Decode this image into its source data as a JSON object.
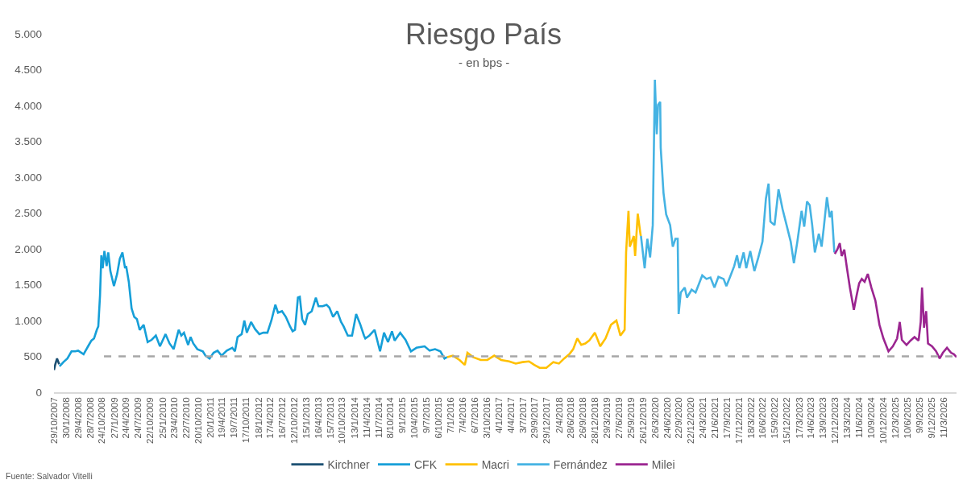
{
  "chart_data": {
    "type": "line",
    "title": "Riesgo País",
    "subtitle": "- en bps -",
    "annotations": [
      "Fuente: Salvador Vitelli"
    ],
    "xlim": [
      "2007-10-29",
      "2026-06-15"
    ],
    "xticks": [
      {
        "value": "2007-10-29",
        "label": "29/10/2007"
      },
      {
        "value": "2008-01-30",
        "label": "30/1/2008"
      },
      {
        "value": "2008-04-29",
        "label": "29/4/2008"
      },
      {
        "value": "2008-07-28",
        "label": "28/7/2008"
      },
      {
        "value": "2008-10-24",
        "label": "24/10/2008"
      },
      {
        "value": "2009-01-27",
        "label": "27/1/2009"
      },
      {
        "value": "2009-04-24",
        "label": "24/4/2009"
      },
      {
        "value": "2009-07-24",
        "label": "24/7/2009"
      },
      {
        "value": "2009-10-22",
        "label": "22/10/2009"
      },
      {
        "value": "2010-01-25",
        "label": "25/1/2010"
      },
      {
        "value": "2010-04-23",
        "label": "23/4/2010"
      },
      {
        "value": "2010-07-22",
        "label": "22/7/2010"
      },
      {
        "value": "2010-10-20",
        "label": "20/10/2010"
      },
      {
        "value": "2011-01-20",
        "label": "20/1/2011"
      },
      {
        "value": "2011-04-19",
        "label": "19/4/2011"
      },
      {
        "value": "2011-07-19",
        "label": "19/7/2011"
      },
      {
        "value": "2011-10-17",
        "label": "17/10/2011"
      },
      {
        "value": "2012-01-18",
        "label": "18/1/2012"
      },
      {
        "value": "2012-04-17",
        "label": "17/4/2012"
      },
      {
        "value": "2012-07-16",
        "label": "16/7/2012"
      },
      {
        "value": "2012-10-12",
        "label": "12/10/2012"
      },
      {
        "value": "2013-01-15",
        "label": "15/1/2013"
      },
      {
        "value": "2013-04-16",
        "label": "16/4/2013"
      },
      {
        "value": "2013-07-15",
        "label": "15/7/2013"
      },
      {
        "value": "2013-10-10",
        "label": "10/10/2013"
      },
      {
        "value": "2014-01-13",
        "label": "13/1/2014"
      },
      {
        "value": "2014-04-11",
        "label": "11/4/2014"
      },
      {
        "value": "2014-07-11",
        "label": "11/7/2014"
      },
      {
        "value": "2014-10-08",
        "label": "8/10/2014"
      },
      {
        "value": "2015-01-09",
        "label": "9/1/2015"
      },
      {
        "value": "2015-04-10",
        "label": "10/4/2015"
      },
      {
        "value": "2015-07-09",
        "label": "9/7/2015"
      },
      {
        "value": "2015-10-06",
        "label": "6/10/2015"
      },
      {
        "value": "2016-01-07",
        "label": "7/1/2016"
      },
      {
        "value": "2016-04-07",
        "label": "7/4/2016"
      },
      {
        "value": "2016-07-06",
        "label": "6/7/2016"
      },
      {
        "value": "2016-10-03",
        "label": "3/10/2016"
      },
      {
        "value": "2017-01-04",
        "label": "4/1/2017"
      },
      {
        "value": "2017-04-04",
        "label": "4/4/2017"
      },
      {
        "value": "2017-07-03",
        "label": "3/7/2017"
      },
      {
        "value": "2017-09-29",
        "label": "29/9/2017"
      },
      {
        "value": "2017-12-29",
        "label": "29/12/2017"
      },
      {
        "value": "2018-04-02",
        "label": "2/4/2018"
      },
      {
        "value": "2018-06-28",
        "label": "28/6/2018"
      },
      {
        "value": "2018-09-26",
        "label": "26/9/2018"
      },
      {
        "value": "2018-12-28",
        "label": "28/12/2018"
      },
      {
        "value": "2019-03-29",
        "label": "29/3/2019"
      },
      {
        "value": "2019-06-27",
        "label": "27/6/2019"
      },
      {
        "value": "2019-09-25",
        "label": "25/9/2019"
      },
      {
        "value": "2019-12-26",
        "label": "26/12/2019"
      },
      {
        "value": "2020-03-26",
        "label": "26/3/2020"
      },
      {
        "value": "2020-06-24",
        "label": "24/6/2020"
      },
      {
        "value": "2020-09-22",
        "label": "22/9/2020"
      },
      {
        "value": "2020-12-22",
        "label": "22/12/2020"
      },
      {
        "value": "2021-03-24",
        "label": "24/3/2021"
      },
      {
        "value": "2021-06-21",
        "label": "21/6/2021"
      },
      {
        "value": "2021-09-17",
        "label": "17/9/2021"
      },
      {
        "value": "2021-12-17",
        "label": "17/12/2021"
      },
      {
        "value": "2022-03-18",
        "label": "18/3/2022"
      },
      {
        "value": "2022-06-16",
        "label": "16/6/2022"
      },
      {
        "value": "2022-09-15",
        "label": "15/9/2022"
      },
      {
        "value": "2022-12-15",
        "label": "15/12/2022"
      },
      {
        "value": "2023-03-17",
        "label": "17/3/2023"
      },
      {
        "value": "2023-06-14",
        "label": "14/6/2023"
      },
      {
        "value": "2023-09-13",
        "label": "13/9/2023"
      },
      {
        "value": "2023-12-12",
        "label": "12/12/2023"
      },
      {
        "value": "2024-03-13",
        "label": "13/3/2024"
      },
      {
        "value": "2024-06-11",
        "label": "11/6/2024"
      },
      {
        "value": "2024-09-10",
        "label": "10/9/2024"
      },
      {
        "value": "2024-12-10",
        "label": "10/12/2024"
      },
      {
        "value": "2025-03-12",
        "label": "12/3/2025"
      },
      {
        "value": "2025-06-10",
        "label": "10/6/2025"
      },
      {
        "value": "2025-09-09",
        "label": "9/9/2025"
      },
      {
        "value": "2025-12-09",
        "label": "9/12/2025"
      },
      {
        "value": "2026-03-11",
        "label": "11/3/2026"
      }
    ],
    "ylim": [
      0,
      5000
    ],
    "yticks": [
      0,
      500,
      {
        "value": 1000,
        "label": "1.000"
      },
      {
        "value": 1500,
        "label": "1.500"
      },
      {
        "value": 2000,
        "label": "2.000"
      },
      {
        "value": 2500,
        "label": "2.500"
      },
      {
        "value": 3000,
        "label": "3.000"
      },
      {
        "value": 3500,
        "label": "3.500"
      },
      {
        "value": 4000,
        "label": "4.000"
      },
      {
        "value": 4500,
        "label": "4.500"
      },
      {
        "value": 5000,
        "label": "5.000"
      }
    ],
    "legend": "bottom",
    "series": [
      {
        "name": "Kirchner",
        "color": "#1b4f72",
        "x": [
          "2007-10-29",
          "2007-11-08",
          "2007-11-21",
          "2007-12-07"
        ],
        "values": [
          310,
          390,
          470,
          390
        ]
      },
      {
        "name": "CFK",
        "color": "#169fd8",
        "x": [
          "2007-12-10",
          "2008-01-08",
          "2008-02-07",
          "2008-03-09",
          "2008-04-07",
          "2008-04-28",
          "2008-06-08",
          "2008-07-18",
          "2008-08-06",
          "2008-08-26",
          "2008-09-16",
          "2008-09-27",
          "2008-10-10",
          "2008-10-20",
          "2008-10-30",
          "2008-11-12",
          "2008-11-29",
          "2008-12-11",
          "2008-12-27",
          "2009-01-23",
          "2009-02-16",
          "2009-03-08",
          "2009-03-28",
          "2009-04-17",
          "2009-04-25",
          "2009-05-15",
          "2009-06-05",
          "2009-06-25",
          "2009-07-15",
          "2009-08-05",
          "2009-09-04",
          "2009-10-04",
          "2009-11-03",
          "2009-12-05",
          "2010-01-05",
          "2010-02-16",
          "2010-03-18",
          "2010-04-18",
          "2010-05-26",
          "2010-06-15",
          "2010-07-05",
          "2010-08-05",
          "2010-08-24",
          "2010-09-13",
          "2010-10-14",
          "2010-11-24",
          "2010-12-14",
          "2011-01-14",
          "2011-02-13",
          "2011-03-15",
          "2011-04-14",
          "2011-05-24",
          "2011-07-04",
          "2011-07-24",
          "2011-08-13",
          "2011-09-13",
          "2011-10-03",
          "2011-10-22",
          "2011-11-23",
          "2011-12-23",
          "2012-01-24",
          "2012-02-23",
          "2012-03-25",
          "2012-04-24",
          "2012-05-24",
          "2012-06-13",
          "2012-07-13",
          "2012-08-11",
          "2012-09-11",
          "2012-10-01",
          "2012-10-19",
          "2012-11-10",
          "2012-11-24",
          "2012-12-12",
          "2013-01-03",
          "2013-01-23",
          "2013-02-22",
          "2013-03-25",
          "2013-04-14",
          "2013-05-15",
          "2013-06-14",
          "2013-07-05",
          "2013-08-02",
          "2013-09-02",
          "2013-10-01",
          "2013-10-20",
          "2013-11-21",
          "2013-12-23",
          "2014-01-23",
          "2014-02-22",
          "2014-03-23",
          "2014-04-02",
          "2014-05-02",
          "2014-06-11",
          "2014-07-22",
          "2014-08-21",
          "2014-09-20",
          "2014-10-20",
          "2014-11-09",
          "2014-12-21",
          "2015-01-30",
          "2015-03-12",
          "2015-04-23",
          "2015-06-23",
          "2015-07-31",
          "2015-09-10",
          "2015-10-20",
          "2015-11-20",
          "2015-12-09"
        ],
        "values": [
          360,
          420,
          470,
          570,
          570,
          580,
          530,
          660,
          720,
          750,
          870,
          920,
          1350,
          1910,
          1730,
          1970,
          1760,
          1950,
          1690,
          1480,
          1650,
          1860,
          1950,
          1730,
          1760,
          1540,
          1170,
          1050,
          1020,
          870,
          940,
          700,
          730,
          790,
          640,
          810,
          680,
          600,
          870,
          790,
          830,
          660,
          770,
          680,
          600,
          570,
          510,
          470,
          550,
          580,
          510,
          580,
          620,
          570,
          770,
          810,
          1000,
          830,
          980,
          880,
          810,
          830,
          830,
          1000,
          1220,
          1110,
          1130,
          1050,
          920,
          850,
          870,
          1320,
          1330,
          1020,
          940,
          1090,
          1130,
          1320,
          1200,
          1200,
          1220,
          1180,
          1050,
          1130,
          980,
          920,
          790,
          790,
          1090,
          950,
          790,
          750,
          790,
          870,
          570,
          830,
          700,
          850,
          720,
          830,
          730,
          570,
          620,
          640,
          580,
          600,
          570,
          470,
          490
        ]
      },
      {
        "name": "Macri",
        "color": "#ffc000",
        "x": [
          "2015-12-10",
          "2016-01-22",
          "2016-03-12",
          "2016-04-21",
          "2016-05-11",
          "2016-06-21",
          "2016-08-19",
          "2016-10-08",
          "2016-11-29",
          "2017-01-20",
          "2017-03-21",
          "2017-05-10",
          "2017-06-30",
          "2017-08-18",
          "2017-09-27",
          "2017-11-06",
          "2017-12-27",
          "2018-02-17",
          "2018-04-01",
          "2018-05-10",
          "2018-06-18",
          "2018-07-17",
          "2018-08-17",
          "2018-09-16",
          "2018-10-16",
          "2018-11-15",
          "2018-12-28",
          "2019-02-06",
          "2019-03-18",
          "2019-04-28",
          "2019-06-08",
          "2019-07-08",
          "2019-08-09",
          "2019-08-20",
          "2019-09-07",
          "2019-09-17",
          "2019-10-17",
          "2019-10-27",
          "2019-11-16",
          "2019-12-06",
          "2019-12-09"
        ],
        "values": [
          490,
          510,
          450,
          380,
          550,
          490,
          450,
          450,
          510,
          450,
          430,
          400,
          420,
          430,
          380,
          340,
          340,
          420,
          400,
          470,
          530,
          600,
          750,
          660,
          680,
          720,
          830,
          640,
          750,
          940,
          1000,
          790,
          870,
          1950,
          2530,
          2030,
          2180,
          1900,
          2490,
          2210,
          2180
        ]
      },
      {
        "name": "Fernández",
        "color": "#45b3e3",
        "x": [
          "2019-12-10",
          "2020-01-07",
          "2020-01-27",
          "2020-02-17",
          "2020-03-08",
          "2020-03-24",
          "2020-04-07",
          "2020-04-17",
          "2020-05-03",
          "2020-05-07",
          "2020-05-28",
          "2020-06-17",
          "2020-07-17",
          "2020-08-06",
          "2020-08-26",
          "2020-09-12",
          "2020-09-19",
          "2020-10-05",
          "2020-11-04",
          "2020-11-21",
          "2020-12-26",
          "2021-01-25",
          "2021-03-16",
          "2021-04-17",
          "2021-05-17",
          "2021-06-16",
          "2021-07-16",
          "2021-08-24",
          "2021-09-14",
          "2021-10-12",
          "2021-11-12",
          "2021-12-03",
          "2021-12-22",
          "2022-01-22",
          "2022-02-11",
          "2022-03-13",
          "2022-04-13",
          "2022-05-13",
          "2022-06-13",
          "2022-07-09",
          "2022-07-29",
          "2022-08-12",
          "2022-09-12",
          "2022-10-12",
          "2022-11-12",
          "2022-12-12",
          "2023-01-12",
          "2023-02-05",
          "2023-03-03",
          "2023-04-04",
          "2023-04-24",
          "2023-05-15",
          "2023-06-04",
          "2023-06-23",
          "2023-07-13",
          "2023-08-12",
          "2023-09-02",
          "2023-09-18",
          "2023-10-12",
          "2023-11-02",
          "2023-11-17",
          "2023-12-07"
        ],
        "values": [
          2180,
          1730,
          2140,
          1880,
          2330,
          4360,
          3600,
          4010,
          4050,
          3410,
          2780,
          2480,
          2330,
          2030,
          2140,
          2140,
          1090,
          1390,
          1460,
          1320,
          1430,
          1390,
          1630,
          1580,
          1600,
          1460,
          1610,
          1580,
          1480,
          1610,
          1760,
          1910,
          1730,
          1950,
          1730,
          1970,
          1690,
          1880,
          2100,
          2700,
          2910,
          2380,
          2330,
          2830,
          2550,
          2330,
          2100,
          1800,
          2100,
          2530,
          2310,
          2660,
          2610,
          2330,
          1950,
          2210,
          2030,
          2290,
          2720,
          2440,
          2530,
          1950
        ]
      },
      {
        "name": "Milei",
        "color": "#9b2590",
        "x": [
          "2023-12-10",
          "2023-12-29",
          "2024-01-17",
          "2024-01-31",
          "2024-02-20",
          "2024-03-11",
          "2024-04-02",
          "2024-05-02",
          "2024-05-23",
          "2024-06-11",
          "2024-07-01",
          "2024-07-22",
          "2024-08-15",
          "2024-09-11",
          "2024-10-11",
          "2024-11-11",
          "2024-12-11",
          "2025-01-18",
          "2025-02-20",
          "2025-03-24",
          "2025-04-13",
          "2025-04-29",
          "2025-06-03",
          "2025-07-03",
          "2025-08-02",
          "2025-09-02",
          "2025-09-18",
          "2025-09-28",
          "2025-10-13",
          "2025-10-29",
          "2025-11-12",
          "2025-12-12",
          "2026-01-12",
          "2026-02-08",
          "2026-03-04",
          "2026-04-04",
          "2026-05-05",
          "2026-05-26",
          "2026-06-15"
        ],
        "values": [
          1930,
          1990,
          2080,
          1900,
          1990,
          1730,
          1460,
          1150,
          1350,
          1520,
          1580,
          1540,
          1650,
          1460,
          1280,
          940,
          750,
          570,
          640,
          750,
          980,
          730,
          660,
          720,
          770,
          720,
          980,
          1460,
          900,
          1130,
          680,
          640,
          570,
          470,
          550,
          620,
          550,
          530,
          490
        ]
      },
      {
        "color": "#a6a6a6",
        "line_style": "dashed",
        "x": [
          "2008-11-09",
          "2026-06-15"
        ],
        "values": [
          500,
          500
        ]
      }
    ]
  }
}
